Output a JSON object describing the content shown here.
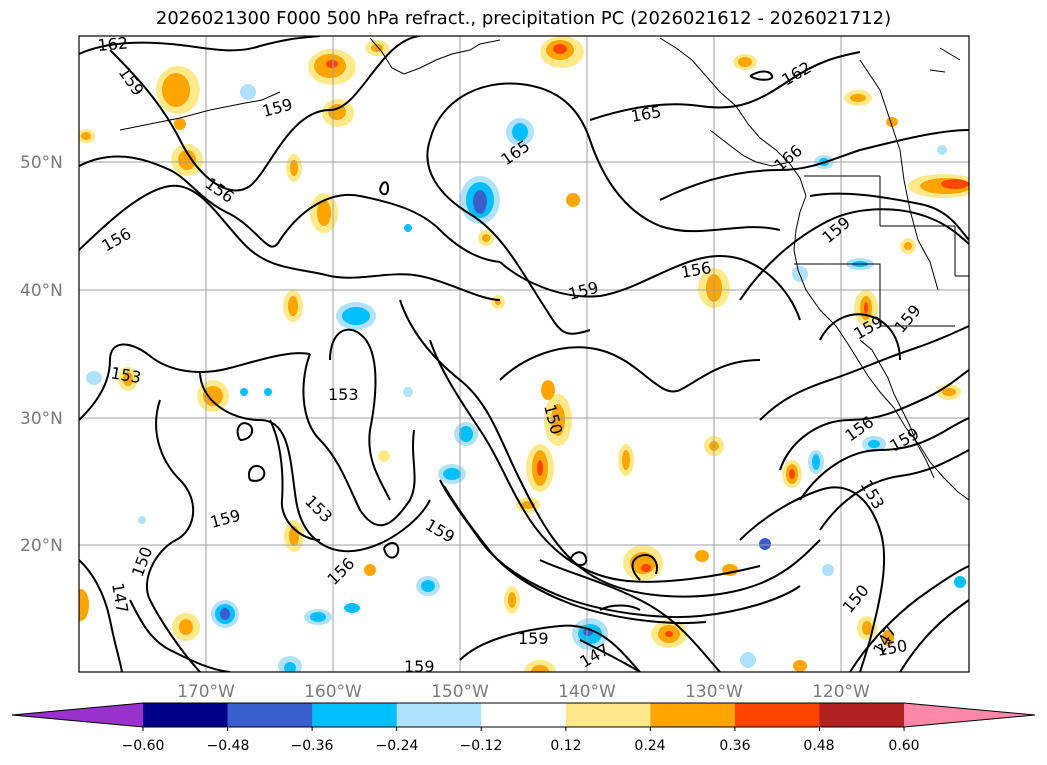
{
  "title": "2026021300 F000 500 hPa refract., precipitation PC (2026021612 - 2026021712)",
  "lat_labels": [
    "50°N",
    "40°N",
    "30°N",
    "20°N"
  ],
  "lon_labels": [
    "170°W",
    "160°W",
    "150°W",
    "140°W",
    "130°W",
    "120°W"
  ],
  "colorbar": {
    "ticks": [
      "−0.60",
      "−0.48",
      "−0.36",
      "−0.24",
      "−0.12",
      "0.12",
      "0.24",
      "0.36",
      "0.48",
      "0.60"
    ],
    "colors": [
      "#9932cc",
      "#00008b",
      "#3a5fcd",
      "#00bfff",
      "#b0e2ff",
      "#ffffff",
      "#ffe98a",
      "#ffa500",
      "#ff4500",
      "#b22222",
      "#ff88aa"
    ]
  },
  "contour_labels": [
    "162",
    "159",
    "159",
    "165",
    "165",
    "162",
    "166",
    "156",
    "156",
    "159",
    "156",
    "159",
    "159",
    "159",
    "153",
    "153",
    "150",
    "159",
    "153",
    "156",
    "159",
    "150",
    "147",
    "159",
    "147",
    "150",
    "147",
    "150",
    "156",
    "159",
    "153",
    "159"
  ],
  "colors": {
    "neg_light": "#b0e2ff",
    "neg_mid": "#00bfff",
    "neg_strong": "#3a5fcd",
    "pos_light": "#ffe98a",
    "pos_mid": "#ffa500",
    "pos_strong": "#ff4500",
    "grid": "#a0a0a0",
    "contour": "#000000"
  }
}
